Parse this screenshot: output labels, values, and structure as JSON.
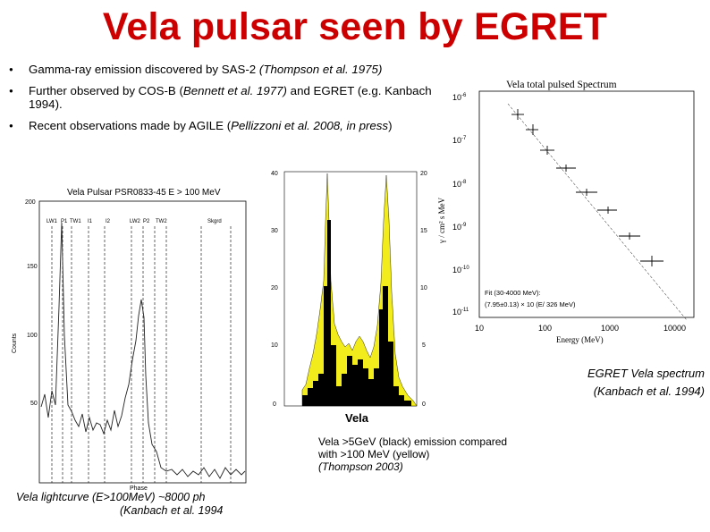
{
  "title": "Vela pulsar seen by EGRET",
  "bullets": [
    {
      "lead": "Gamma-ray emission discovered by SAS-2 ",
      "ital": "(Thompson et al. 1975)",
      "tail": ""
    },
    {
      "lead": "Further observed by COS-B (",
      "ital": "Bennett et al. 1977)",
      "tail": " and EGRET (e.g. Kanbach et al. 1994)."
    },
    {
      "lead": "Recent observations made by AGILE (",
      "ital": "Pellizzoni et al. 2008, in press",
      "tail": ")"
    }
  ],
  "lightcurve": {
    "title": "Vela Pulsar PSR0833-45  E > 100 MeV",
    "phase_labels": [
      "LW1",
      "P1",
      "TW1",
      "I1",
      "I2",
      "LW2",
      "P2",
      "TW2",
      "Skgrd"
    ],
    "ylabel": "Counts",
    "xlabel": "Phase",
    "yticks": [
      "200",
      "150",
      "100",
      "50"
    ],
    "caption_1": "Vela lightcurve (E>100MeV) ~8000 ph",
    "caption_2": "(Kanbach et al. 1994"
  },
  "comparison": {
    "left_ticks": [
      "40",
      "30",
      "20",
      "10",
      "0"
    ],
    "right_ticks": [
      "20",
      "15",
      "10",
      "5",
      "0"
    ],
    "label": "Vela",
    "caption": "Vela >5GeV (black) emission compared with >100 MeV (yellow)",
    "caption_ital": "(Thompson 2003)"
  },
  "spectrum": {
    "title": "Vela total pulsed Spectrum",
    "ylabel": "γ / cm² s MeV",
    "xlabel": "Energy (MeV)",
    "xticks": [
      "10",
      "100",
      "1000",
      "10000"
    ],
    "yticks": [
      "10",
      "10",
      "10",
      "10",
      "10",
      "10"
    ],
    "yexps": [
      "-6",
      "-7",
      "-8",
      "-9",
      "-10",
      "-11"
    ],
    "fit_1": "Fit (30-4000 MeV):",
    "fit_2": "(7.95±0.13) × 10    (E/ 326 MeV)",
    "caption_1": "EGRET Vela spectrum",
    "caption_2": "(Kanbach et al. 1994)"
  }
}
